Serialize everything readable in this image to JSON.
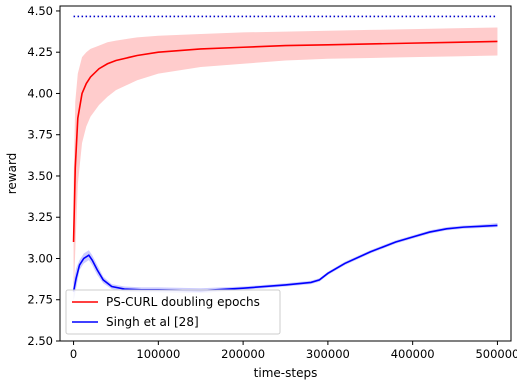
{
  "chart_data": {
    "type": "line",
    "title": "",
    "xlabel": "time-steps",
    "ylabel": "reward",
    "xlim": [
      -16000,
      516000
    ],
    "ylim": [
      2.5,
      4.53
    ],
    "xticks": [
      0,
      100000,
      200000,
      300000,
      400000,
      500000
    ],
    "xtick_labels": [
      "0",
      "100000",
      "200000",
      "300000",
      "400000",
      "500000"
    ],
    "yticks": [
      2.5,
      2.75,
      3.0,
      3.25,
      3.5,
      3.75,
      4.0,
      4.25,
      4.5
    ],
    "ytick_labels": [
      "2.50",
      "2.75",
      "3.00",
      "3.25",
      "3.50",
      "3.75",
      "4.00",
      "4.25",
      "4.50"
    ],
    "grid": false,
    "legend_position": "lower-left",
    "reference_line": {
      "y": 4.467,
      "x": [
        0,
        500000
      ],
      "color": "#0000cc",
      "style": "dotted"
    },
    "series": [
      {
        "name": "PS-CURL doubling epochs",
        "color": "#ff0000",
        "band_color": "#ff9999",
        "x": [
          0,
          2000,
          5000,
          10000,
          15000,
          20000,
          30000,
          40000,
          50000,
          75000,
          100000,
          150000,
          200000,
          250000,
          300000,
          350000,
          400000,
          450000,
          500000
        ],
        "y": [
          3.1,
          3.55,
          3.85,
          4.0,
          4.06,
          4.1,
          4.15,
          4.18,
          4.2,
          4.23,
          4.25,
          4.27,
          4.28,
          4.29,
          4.295,
          4.3,
          4.305,
          4.31,
          4.315
        ],
        "lower": [
          2.75,
          3.05,
          3.45,
          3.7,
          3.8,
          3.86,
          3.93,
          3.98,
          4.02,
          4.08,
          4.12,
          4.16,
          4.18,
          4.2,
          4.21,
          4.215,
          4.22,
          4.225,
          4.23
        ],
        "upper": [
          3.45,
          3.95,
          4.12,
          4.22,
          4.25,
          4.27,
          4.29,
          4.31,
          4.32,
          4.34,
          4.35,
          4.36,
          4.37,
          4.375,
          4.38,
          4.385,
          4.39,
          4.395,
          4.4
        ]
      },
      {
        "name": "Singh et al [28]",
        "color": "#0000ff",
        "band_color": "#9999ff",
        "x": [
          0,
          3000,
          7000,
          12000,
          18000,
          22000,
          28000,
          35000,
          45000,
          60000,
          80000,
          100000,
          150000,
          200000,
          250000,
          280000,
          290000,
          300000,
          320000,
          350000,
          380000,
          400000,
          420000,
          440000,
          460000,
          480000,
          500000
        ],
        "y": [
          2.8,
          2.88,
          2.96,
          3.0,
          3.02,
          2.99,
          2.93,
          2.87,
          2.83,
          2.815,
          2.81,
          2.81,
          2.805,
          2.82,
          2.84,
          2.855,
          2.87,
          2.91,
          2.97,
          3.04,
          3.1,
          3.13,
          3.16,
          3.18,
          3.19,
          3.195,
          3.2
        ],
        "lower": [
          2.74,
          2.82,
          2.93,
          2.97,
          2.99,
          2.96,
          2.9,
          2.85,
          2.815,
          2.8,
          2.795,
          2.795,
          2.79,
          2.81,
          2.83,
          2.845,
          2.86,
          2.9,
          2.96,
          3.03,
          3.09,
          3.12,
          3.15,
          3.17,
          3.18,
          3.185,
          3.19
        ],
        "upper": [
          2.86,
          2.94,
          2.99,
          3.03,
          3.05,
          3.02,
          2.96,
          2.89,
          2.845,
          2.83,
          2.825,
          2.825,
          2.82,
          2.83,
          2.85,
          2.865,
          2.88,
          2.92,
          2.98,
          3.05,
          3.11,
          3.14,
          3.17,
          3.19,
          3.2,
          3.205,
          3.215
        ]
      }
    ]
  }
}
